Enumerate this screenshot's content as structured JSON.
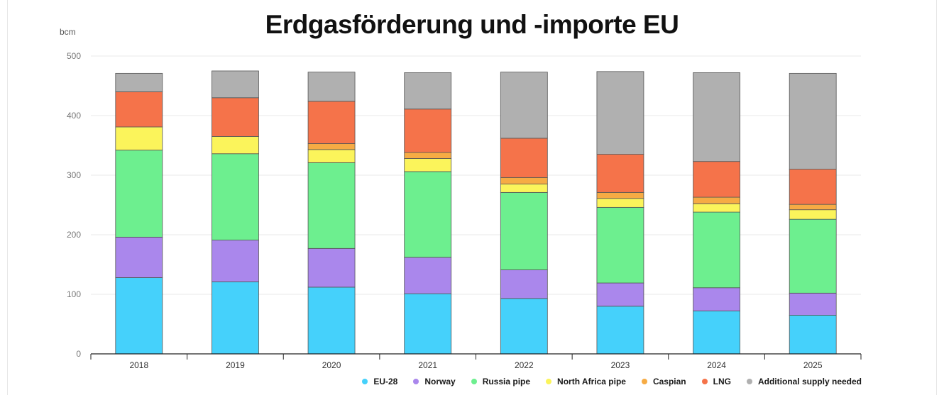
{
  "chart_data": {
    "type": "bar",
    "stacked": true,
    "title": "Erdgasförderung und -importe EU",
    "ylabel": "bcm",
    "ylim": [
      0,
      500
    ],
    "yticks": [
      0,
      100,
      200,
      300,
      400,
      500
    ],
    "grid": true,
    "legend_position": "bottom-right",
    "categories": [
      "2018",
      "2019",
      "2020",
      "2021",
      "2022",
      "2023",
      "2024",
      "2025"
    ],
    "series": [
      {
        "name": "EU-28",
        "color": "#45d1fb",
        "values": [
          128,
          121,
          112,
          101,
          93,
          80,
          72,
          65
        ]
      },
      {
        "name": "Norway",
        "color": "#aa87ec",
        "values": [
          68,
          70,
          65,
          61,
          48,
          39,
          39,
          37
        ]
      },
      {
        "name": "Russia pipe",
        "color": "#6def8f",
        "values": [
          146,
          145,
          144,
          144,
          130,
          127,
          127,
          124
        ]
      },
      {
        "name": "North Africa pipe",
        "color": "#fbf45b",
        "values": [
          39,
          29,
          22,
          22,
          14,
          15,
          14,
          16
        ]
      },
      {
        "name": "Caspian",
        "color": "#f6ab44",
        "values": [
          0,
          0,
          10,
          10,
          11,
          10,
          11,
          9
        ]
      },
      {
        "name": "LNG",
        "color": "#f5734a",
        "values": [
          59,
          65,
          71,
          73,
          66,
          64,
          60,
          59
        ]
      },
      {
        "name": "Additional supply needed",
        "color": "#b0b0b0",
        "values": [
          31,
          45,
          49,
          61,
          111,
          139,
          149,
          161
        ]
      }
    ]
  }
}
